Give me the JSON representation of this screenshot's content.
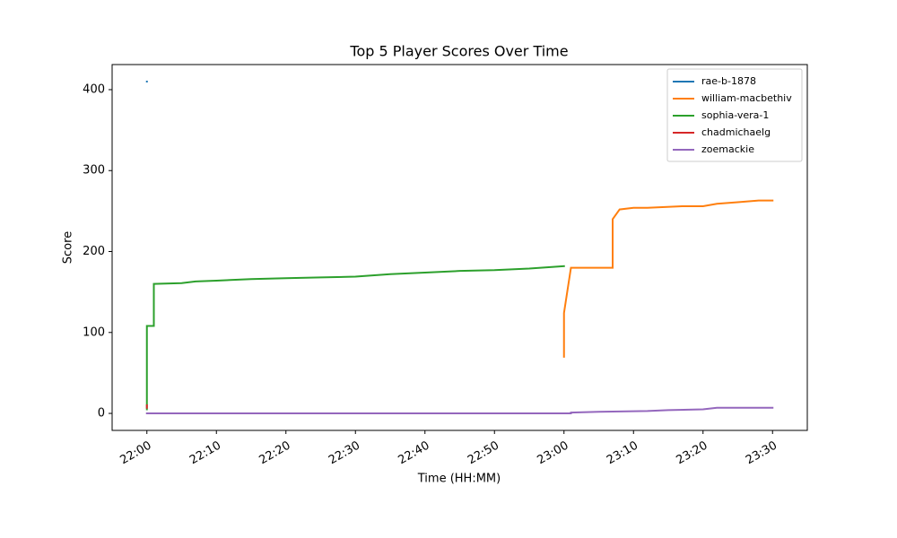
{
  "chart_data": {
    "type": "line",
    "title": "Top 5 Player Scores Over Time",
    "x_label": "Time (HH:MM)",
    "y_label": "Score",
    "xlim": [
      "21:55",
      "23:35"
    ],
    "ylim": [
      -21,
      431
    ],
    "xticks": [
      "22:00",
      "22:10",
      "22:20",
      "22:30",
      "22:40",
      "22:50",
      "23:00",
      "23:10",
      "23:20",
      "23:30"
    ],
    "yticks": [
      0,
      100,
      200,
      300,
      400
    ],
    "legend": "upper right",
    "grid": false,
    "series": [
      {
        "name": "rae-b-1878",
        "color": "#1f77b4",
        "x": [
          "22:00",
          "22:00"
        ],
        "values": [
          410,
          410
        ]
      },
      {
        "name": "william-macbethiv",
        "color": "#ff7f0e",
        "x": [
          "23:00",
          "23:00",
          "23:00",
          "23:01",
          "23:07",
          "23:07",
          "23:08",
          "23:10",
          "23:12",
          "23:17",
          "23:20",
          "23:22",
          "23:25",
          "23:28",
          "23:30"
        ],
        "values": [
          70,
          124,
          124,
          180,
          180,
          240,
          252,
          254,
          254,
          256,
          256,
          259,
          261,
          263,
          263
        ]
      },
      {
        "name": "sophia-vera-1",
        "color": "#2ca02c",
        "x": [
          "22:00",
          "22:00",
          "22:01",
          "22:01",
          "22:05",
          "22:07",
          "22:10",
          "22:15",
          "22:20",
          "22:25",
          "22:30",
          "22:35",
          "22:40",
          "22:45",
          "22:50",
          "22:55",
          "23:00"
        ],
        "values": [
          5,
          108,
          108,
          160,
          161,
          163,
          164,
          166,
          167,
          168,
          169,
          172,
          174,
          176,
          177,
          179,
          182
        ]
      },
      {
        "name": "chadmichaelg",
        "color": "#d62728",
        "x": [
          "22:00",
          "22:00"
        ],
        "values": [
          7,
          10
        ]
      },
      {
        "name": "zoemackie",
        "color": "#9467bd",
        "x": [
          "22:00",
          "23:01",
          "23:01",
          "23:05",
          "23:12",
          "23:15",
          "23:20",
          "23:22",
          "23:30"
        ],
        "values": [
          0,
          0,
          1,
          2,
          3,
          4,
          5,
          7,
          7
        ]
      }
    ]
  }
}
